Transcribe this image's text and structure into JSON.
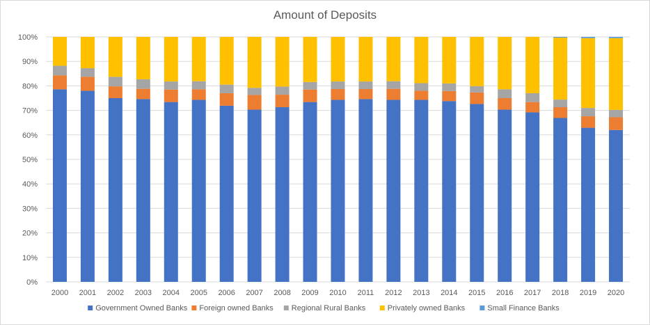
{
  "chart_data": {
    "type": "bar",
    "stacked": true,
    "percent_stacked": true,
    "title": "Amount of Deposits",
    "xlabel": "",
    "ylabel": "",
    "ylim": [
      0,
      100
    ],
    "y_ticks": [
      "0%",
      "10%",
      "20%",
      "30%",
      "40%",
      "50%",
      "60%",
      "70%",
      "80%",
      "90%",
      "100%"
    ],
    "grid": true,
    "legend_position": "bottom",
    "categories": [
      "2000",
      "2001",
      "2002",
      "2003",
      "2004",
      "2005",
      "2006",
      "2007",
      "2008",
      "2009",
      "2010",
      "2011",
      "2012",
      "2013",
      "2014",
      "2015",
      "2016",
      "2017",
      "2018",
      "2019",
      "2020"
    ],
    "series": [
      {
        "name": "Government Owned Banks",
        "color": "#4472c4",
        "values": [
          78.6,
          78.0,
          75.0,
          74.6,
          73.4,
          74.3,
          71.9,
          70.3,
          71.3,
          73.4,
          74.3,
          74.6,
          74.3,
          74.3,
          73.8,
          72.6,
          70.3,
          69.2,
          66.9,
          62.9,
          62.0
        ]
      },
      {
        "name": "Foreign owned Banks",
        "color": "#ed7d31",
        "values": [
          5.7,
          5.7,
          4.8,
          4.2,
          5.1,
          4.3,
          5.1,
          6.0,
          5.1,
          5.1,
          4.4,
          4.1,
          4.5,
          3.7,
          4.1,
          4.7,
          4.7,
          4.2,
          4.4,
          4.7,
          5.2
        ]
      },
      {
        "name": "Regional Rural Banks",
        "color": "#a5a5a5",
        "values": [
          3.9,
          3.5,
          3.9,
          3.9,
          3.3,
          3.3,
          3.5,
          2.9,
          3.3,
          3.1,
          3.1,
          3.1,
          3.1,
          3.1,
          3.1,
          2.6,
          3.6,
          3.6,
          3.1,
          3.4,
          3.0
        ]
      },
      {
        "name": "Privately owned Banks",
        "color": "#ffc000",
        "values": [
          11.8,
          12.8,
          16.3,
          17.3,
          18.2,
          18.1,
          19.5,
          20.8,
          20.3,
          18.4,
          18.2,
          18.2,
          18.1,
          18.9,
          19.0,
          20.1,
          21.4,
          23.0,
          25.3,
          28.5,
          29.3
        ]
      },
      {
        "name": "Small Finance Banks",
        "color": "#5b9bd5",
        "values": [
          0,
          0,
          0,
          0,
          0,
          0,
          0,
          0,
          0,
          0,
          0,
          0,
          0,
          0,
          0,
          0,
          0,
          0,
          0.3,
          0.5,
          0.5
        ]
      }
    ]
  }
}
